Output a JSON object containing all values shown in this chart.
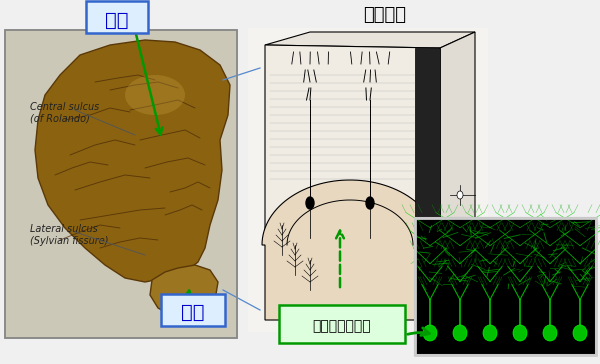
{
  "bg_color": "#f0f0f0",
  "title_text": "小脳皮質",
  "title_fontsize": 13,
  "label_daino": "大脳",
  "label_shouno": "小脳",
  "label_purkinje": "プルキンエ細胞",
  "label_central": "Central sulcus\n(of Rolando)",
  "label_lateral": "Lateral sulcus\n(Sylvian fissure)",
  "arrow_color_green": "#009900",
  "arrow_color_blue": "#5588cc",
  "box_border_blue": "#3366cc",
  "box_fill_daino": "#ddeeff",
  "box_fill_purkinje": "#ccffcc",
  "brain_bg": "#d8d4cc",
  "brain_color": "#8B6310",
  "brain_dark": "#5a3808"
}
